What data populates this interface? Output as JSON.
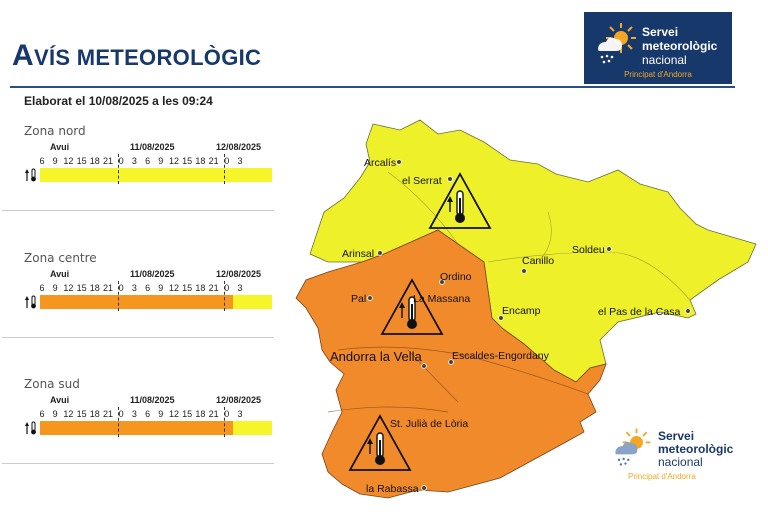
{
  "header": {
    "title_first": "A",
    "title_rest": "VÍS METEOROLÒGIC",
    "elaborat": "Elaborat el 10/08/2025 a les 09:24"
  },
  "logo": {
    "line1": "Servei",
    "line2": "meteorològic",
    "line3": "nacional",
    "line4": "Principat d'Andorra"
  },
  "timeline": {
    "day_labels": [
      "Avui",
      "11/08/2025",
      "12/08/2025"
    ],
    "hours": [
      "6",
      "9",
      "12",
      "15",
      "18",
      "21",
      "0",
      "3",
      "6",
      "9",
      "12",
      "15",
      "18",
      "21",
      "0",
      "3"
    ]
  },
  "zones": [
    {
      "name": "Zona nord",
      "warning": "yellow"
    },
    {
      "name": "Zona centre",
      "warning": "orange",
      "orange_until_hour_index": 14
    },
    {
      "name": "Zona sud",
      "warning": "orange",
      "orange_until_hour_index": 14
    }
  ],
  "colors": {
    "yellow": "#f6f52a",
    "orange": "#f5961e",
    "map_yellow": "#eef02a",
    "map_orange": "#f08a2a",
    "navy": "#17386b"
  },
  "map": {
    "places": {
      "arcalis": "Arcalís",
      "serrat": "el Serrat",
      "arinsal": "Arinsal",
      "canillo": "Canillo",
      "soldeu": "Soldeu",
      "ordino": "Ordino",
      "pal": "Pal",
      "massana": "La Massana",
      "encamp": "Encamp",
      "pas": "el Pas de la Casa",
      "andorra": "Andorra la Vella",
      "escaldes": "Escaldes-Engordany",
      "julia": "St. Julià de Lòria",
      "rabassa": "la Rabassa"
    },
    "icons": [
      "thermometer-up-icon",
      "warning-triangle-icon"
    ]
  }
}
